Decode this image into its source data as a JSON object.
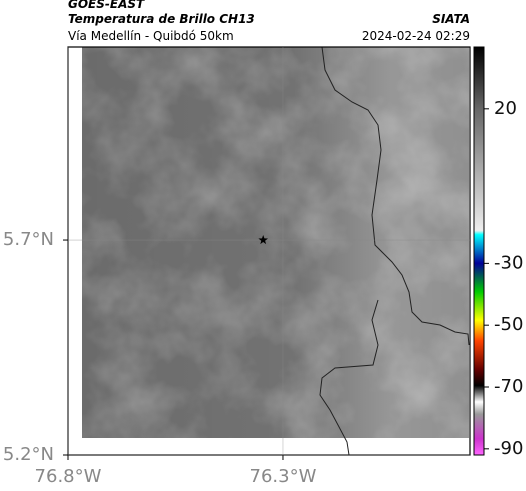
{
  "header": {
    "title": "GOES-EAST",
    "subtitle": "Temperatura de Brillo CH13",
    "route": "Vía Medellín - Quibdó 50km",
    "source": "SIATA",
    "timestamp": "2024-02-24 02:29"
  },
  "map": {
    "xlim": [
      -76.8,
      -75.865
    ],
    "ylim": [
      5.2,
      6.149
    ],
    "xticks": [
      {
        "value": -76.8,
        "label": "76.8°W"
      },
      {
        "value": -76.3,
        "label": "76.3°W"
      }
    ],
    "yticks": [
      {
        "value": 5.7,
        "label": "5.7°N"
      },
      {
        "value": 5.2,
        "label": "5.2°N"
      }
    ],
    "grid": true,
    "marker": {
      "lon": -76.346,
      "lat": 5.7
    }
  },
  "colorbar": {
    "lim": [
      -92,
      40
    ],
    "ticks": [
      20,
      -30,
      -50,
      -70,
      -90
    ]
  }
}
